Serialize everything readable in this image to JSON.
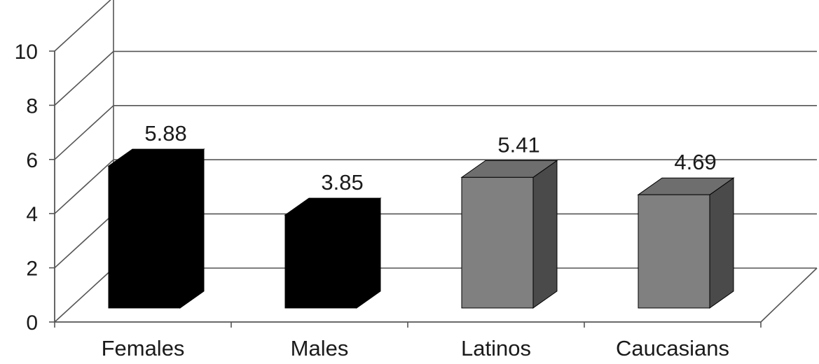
{
  "chart_data": {
    "type": "bar",
    "three_d": true,
    "categories": [
      "Females",
      "Males",
      "Latinos",
      "Caucasians"
    ],
    "values": [
      5.88,
      3.85,
      5.41,
      4.69
    ],
    "data_labels": [
      "5.88",
      "3.85",
      "5.41",
      "4.69"
    ],
    "bar_colors": [
      "#000000",
      "#000000",
      "#808080",
      "#808080"
    ],
    "ylim": [
      0,
      10
    ],
    "yticks": [
      "0",
      "2",
      "4",
      "6",
      "8",
      "10"
    ],
    "grid": true,
    "legend": "none"
  }
}
